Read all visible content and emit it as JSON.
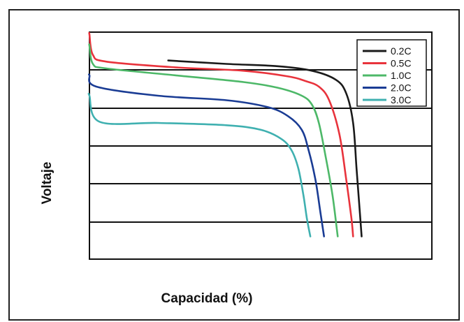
{
  "chart_data": {
    "type": "line",
    "title": "",
    "xlabel": "Capacidad (%)",
    "ylabel": "Voltaje",
    "grid": true,
    "legend_position": "top-right",
    "xlim": [
      0,
      100
    ],
    "ylim": [
      0,
      100
    ],
    "series": [
      {
        "name": "0.2C",
        "color": "#1a1a1a",
        "points": [
          [
            23,
            87.5
          ],
          [
            40,
            86
          ],
          [
            55,
            85
          ],
          [
            65,
            83
          ],
          [
            72,
            79
          ],
          [
            75,
            73
          ],
          [
            77,
            60
          ],
          [
            78,
            40
          ],
          [
            79,
            20
          ],
          [
            79.5,
            10
          ]
        ]
      },
      {
        "name": "0.5C",
        "color": "#e8333c",
        "points": [
          [
            0,
            99
          ],
          [
            0,
            99
          ],
          [
            1,
            90
          ],
          [
            5,
            87
          ],
          [
            25,
            84.5
          ],
          [
            45,
            83
          ],
          [
            58,
            80.5
          ],
          [
            63,
            78.5
          ],
          [
            67,
            76
          ],
          [
            70,
            70
          ],
          [
            73,
            55
          ],
          [
            75,
            35
          ],
          [
            76.5,
            18
          ],
          [
            77,
            10
          ]
        ]
      },
      {
        "name": "1.0C",
        "color": "#4db868",
        "points": [
          [
            0,
            94
          ],
          [
            0,
            94
          ],
          [
            1,
            86
          ],
          [
            5,
            84
          ],
          [
            25,
            81
          ],
          [
            45,
            78
          ],
          [
            55,
            75.5
          ],
          [
            62,
            72
          ],
          [
            65,
            68
          ],
          [
            67,
            60
          ],
          [
            69,
            45
          ],
          [
            71,
            28
          ],
          [
            72.5,
            10
          ]
        ]
      },
      {
        "name": "2.0C",
        "color": "#1a3c94",
        "points": [
          [
            0,
            81
          ],
          [
            0,
            81
          ],
          [
            2,
            76
          ],
          [
            20,
            72
          ],
          [
            40,
            70
          ],
          [
            52,
            67
          ],
          [
            58,
            63
          ],
          [
            62,
            57
          ],
          [
            64,
            48
          ],
          [
            66,
            35
          ],
          [
            67.5,
            20
          ],
          [
            68.5,
            10
          ]
        ]
      },
      {
        "name": "3.0C",
        "color": "#3fb0b0",
        "points": [
          [
            0,
            72
          ],
          [
            0,
            72
          ],
          [
            3,
            60.5
          ],
          [
            20,
            60
          ],
          [
            40,
            59
          ],
          [
            50,
            57
          ],
          [
            56,
            53
          ],
          [
            59,
            48
          ],
          [
            61,
            40
          ],
          [
            62.5,
            28
          ],
          [
            63.5,
            18
          ],
          [
            64.5,
            10
          ]
        ]
      }
    ]
  }
}
